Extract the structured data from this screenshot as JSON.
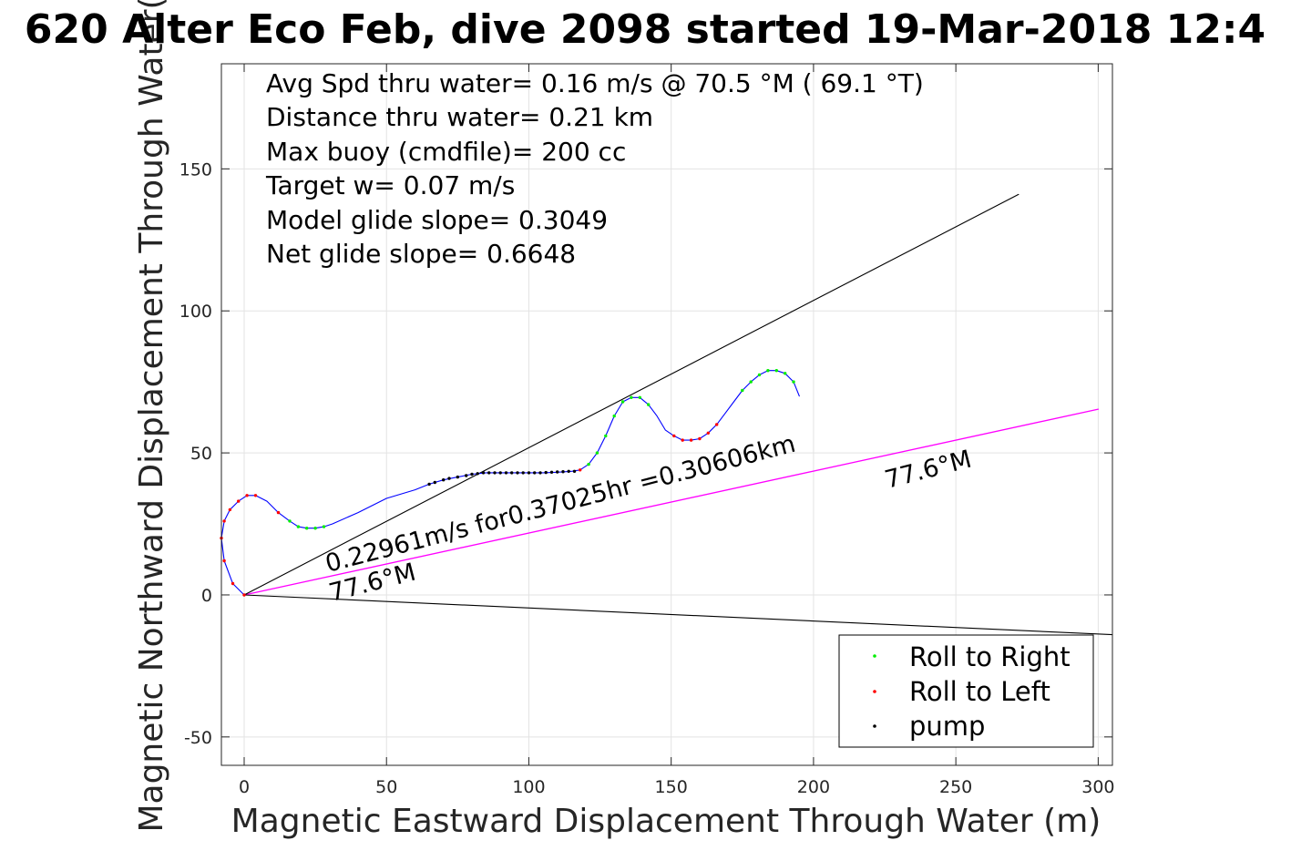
{
  "chart_data": {
    "type": "line",
    "title": "620 Alter Eco Feb, dive 2098 started 19-Mar-2018 12:4",
    "xlabel": "Magnetic Eastward Displacement Through Water (m)",
    "ylabel": "Magnetic Northward Displacement Through Water(",
    "xlim": [
      -8,
      305
    ],
    "ylim": [
      -60,
      187
    ],
    "xticks": [
      0,
      50,
      100,
      150,
      200,
      250,
      300
    ],
    "yticks": [
      -50,
      0,
      50,
      100,
      150
    ],
    "xtick_labels": [
      "0",
      "50",
      "100",
      "150",
      "200",
      "250",
      "300"
    ],
    "ytick_labels": [
      "-50",
      "0",
      "50",
      "100",
      "150"
    ],
    "grid": true,
    "legend_position": "bottom-right",
    "annotations": [
      "Avg Spd thru water=  0.16 m/s @  70.5 °M ( 69.1 °T)",
      "Distance thru water=  0.21 km",
      "Max buoy (cmdfile)= 200 cc",
      "Target w= 0.07 m/s",
      "Model glide slope= 0.3049",
      "Net glide slope= 0.6648"
    ],
    "slanted_labels": {
      "speed": "0.22961m/s for0.37025hr =0.30606km",
      "heading_near": "77.6°M",
      "heading_far": "77.6°M"
    },
    "legend": [
      {
        "label": "Roll to Right",
        "color": "#00ee00"
      },
      {
        "label": "Roll to Left",
        "color": "#ff0000"
      },
      {
        "label": "pump",
        "color": "#000000"
      }
    ],
    "colors": {
      "track": "#0000ff",
      "current_line": "#ff00ff",
      "reference_lines": "#000000",
      "roll_right": "#00ee00",
      "roll_left": "#ff0000",
      "pump": "#000000"
    },
    "series": [
      {
        "name": "track",
        "x": [
          0,
          -4,
          -7,
          -8,
          -7,
          -5,
          -2,
          1,
          4,
          8,
          12,
          16,
          19,
          22,
          25,
          28,
          31,
          40,
          50,
          60,
          65,
          70,
          75,
          80,
          85,
          90,
          95,
          100,
          105,
          110,
          115,
          118,
          121,
          124,
          127,
          130,
          133,
          136,
          139,
          142,
          145,
          148,
          151,
          154,
          157,
          160,
          163,
          166,
          169,
          172,
          175,
          178,
          181,
          184,
          187,
          190,
          193,
          195
        ],
        "y": [
          0,
          4,
          12,
          20,
          26,
          30,
          33,
          35,
          35,
          33,
          29,
          26,
          24,
          23.5,
          23.5,
          24,
          25,
          29,
          34,
          37,
          39,
          40.5,
          41.5,
          42.5,
          43,
          43,
          43,
          43,
          43,
          43.2,
          43.5,
          44,
          46,
          50,
          56,
          63,
          68,
          69.5,
          69.5,
          67,
          63,
          58,
          56,
          54.5,
          54.5,
          55,
          57,
          60,
          64,
          68,
          72,
          75,
          77.5,
          79,
          79,
          78,
          75,
          70
        ]
      },
      {
        "name": "current",
        "x": [
          0,
          300
        ],
        "y": [
          0,
          65.4
        ]
      },
      {
        "name": "envelope-upper",
        "x": [
          0,
          272
        ],
        "y": [
          0,
          141
        ]
      },
      {
        "name": "envelope-lower",
        "x": [
          0,
          305
        ],
        "y": [
          0,
          -14
        ]
      }
    ],
    "markers": {
      "roll_right": {
        "x": [
          16,
          19,
          22,
          25,
          28,
          121,
          124,
          127,
          130,
          133,
          136,
          139,
          142,
          175,
          178,
          181,
          184,
          187,
          190,
          193
        ],
        "y": [
          26,
          24,
          23.5,
          23.5,
          24,
          46,
          50,
          56,
          63,
          68,
          69.5,
          69.5,
          67,
          72,
          75,
          77.5,
          79,
          79,
          78,
          75
        ]
      },
      "roll_left": {
        "x": [
          0,
          -4,
          -7,
          -8,
          -7,
          -5,
          -2,
          1,
          4,
          12,
          118,
          151,
          154,
          157,
          160,
          163,
          166
        ],
        "y": [
          0,
          4,
          12,
          20,
          26,
          30,
          33,
          35,
          35,
          29,
          44,
          56,
          54.5,
          54.5,
          55,
          57,
          60
        ]
      },
      "pump": {
        "x": [
          65,
          67,
          70,
          72,
          75,
          78,
          80,
          82,
          84,
          86,
          88,
          90,
          92,
          94,
          96,
          98,
          100,
          102,
          104,
          106,
          108,
          110,
          112,
          114,
          116
        ],
        "y": [
          39,
          39.6,
          40.5,
          41,
          41.5,
          42,
          42.5,
          42.7,
          43,
          43,
          43,
          43,
          43,
          43,
          43,
          43,
          43,
          43,
          43,
          43.1,
          43.2,
          43.3,
          43.4,
          43.5,
          43.5
        ]
      }
    }
  }
}
